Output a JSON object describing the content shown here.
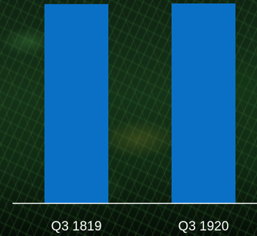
{
  "chart_data": {
    "type": "bar",
    "categories": [
      "Q3 1819",
      "Q3 1920"
    ],
    "values": [
      100,
      100.3
    ],
    "title": "",
    "xlabel": "",
    "ylabel": "",
    "ylim": [
      0,
      100.3
    ],
    "grid": false,
    "colors": {
      "bar": "#0a70c6",
      "axis": "#ffffff",
      "label": "#ffffff"
    }
  }
}
